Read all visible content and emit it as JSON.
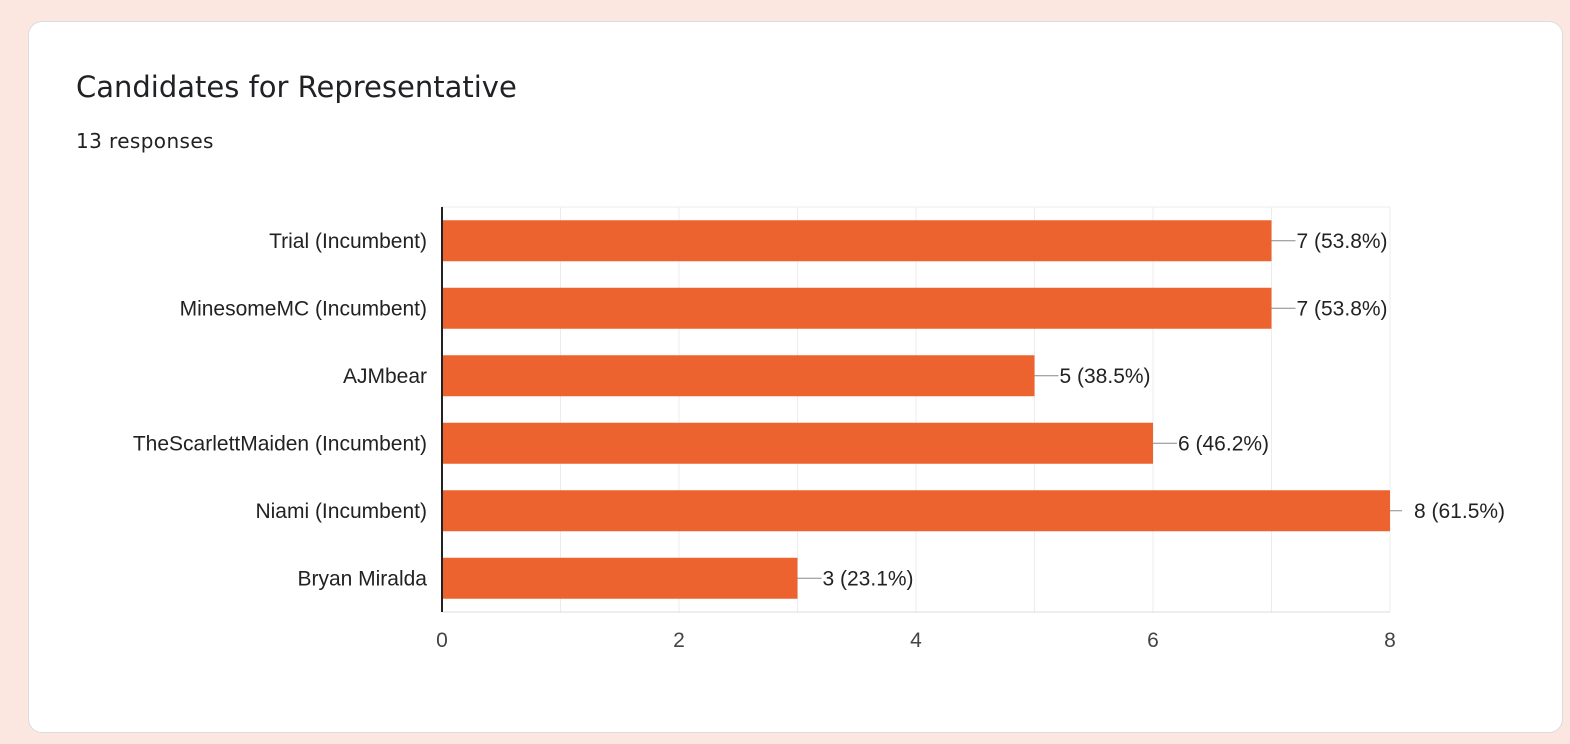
{
  "card": {
    "title": "Candidates for Representative",
    "response_count": "13 responses"
  },
  "colors": {
    "bar": "#ec632f",
    "page_background": "#fbe7df"
  },
  "chart_data": {
    "type": "bar",
    "orientation": "horizontal",
    "title": "",
    "xlabel": "",
    "ylabel": "",
    "categories": [
      "Trial (Incumbent)",
      "MinesomeMC (Incumbent)",
      "AJMbear",
      "TheScarlettMaiden (Incumbent)",
      "Niami (Incumbent)",
      "Bryan Miralda"
    ],
    "values": [
      7,
      7,
      5,
      6,
      8,
      3
    ],
    "value_labels": [
      "7 (53.8%)",
      "7 (53.8%)",
      "5 (38.5%)",
      "6 (46.2%)",
      "8 (61.5%)",
      "3 (23.1%)"
    ],
    "xlim": [
      0,
      8
    ],
    "x_ticks": [
      0,
      2,
      4,
      6,
      8
    ],
    "grid": true
  }
}
